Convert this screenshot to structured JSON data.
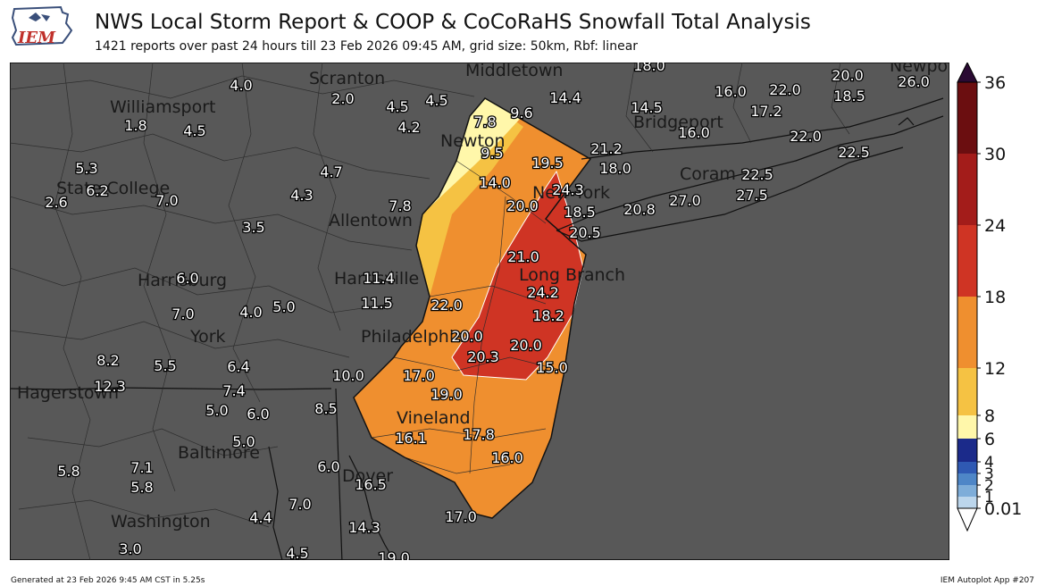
{
  "logo": {
    "text": "IEM"
  },
  "header": {
    "title": "NWS Local Storm Report & COOP & CoCoRaHS Snowfall Total Analysis",
    "subtitle": "1421 reports over past 24 hours till 23 Feb 2026 09:45 AM, grid size: 50km, Rbf: linear"
  },
  "footer": {
    "generated": "Generated at 23 Feb 2026 9:45 AM CST in 5.25s",
    "app": "IEM Autoplot App #207"
  },
  "colors": {
    "map_background": "#585858",
    "class_6_8": "#fff7aa",
    "class_8_12": "#f5c243",
    "class_12_18": "#ef8f2f",
    "class_18_24": "#cf3424",
    "class_24_30": "#a31c1a",
    "class_30_36": "#6b0e10"
  },
  "colorbar": {
    "ticks": [
      "36",
      "30",
      "24",
      "18",
      "12",
      "8",
      "6",
      "4",
      "3",
      "2",
      "1",
      "0.01"
    ]
  },
  "places": [
    "Scranton",
    "Middletown",
    "Newport",
    "Williamsport",
    "Bridgeport",
    "Newton",
    "New York",
    "State College",
    "Allentown",
    "Coram",
    "Harrisburg",
    "Harrisville",
    "Long Branch",
    "York",
    "Philadelphia",
    "Hagerstown",
    "Vineland",
    "Baltimore",
    "Dover",
    "Washington"
  ],
  "reports": [
    "18.0",
    "20.0",
    "26.0",
    "4.0",
    "2.0",
    "4.5",
    "4.5",
    "14.4",
    "16.0",
    "22.0",
    "18.5",
    "1.8",
    "7.8",
    "9.6",
    "14.5",
    "17.2",
    "4.5",
    "4.2",
    "16.0",
    "22.0",
    "21.2",
    "22.5",
    "9.5",
    "5.3",
    "19.5",
    "18.0",
    "4.7",
    "22.5",
    "6.2",
    "2.6",
    "7.0",
    "14.0",
    "24.3",
    "27.5",
    "4.3",
    "27.0",
    "20.0",
    "20.8",
    "7.8",
    "18.5",
    "3.5",
    "20.5",
    "21.0",
    "6.0",
    "11.4",
    "24.2",
    "11.5",
    "22.0",
    "7.0",
    "4.0",
    "5.0",
    "18.2",
    "20.0",
    "20.0",
    "8.2",
    "5.5",
    "6.4",
    "20.3",
    "15.0",
    "10.0",
    "17.0",
    "12.3",
    "7.4",
    "19.0",
    "5.0",
    "6.0",
    "8.5",
    "17.8",
    "16.1",
    "5.0",
    "16.0",
    "7.1",
    "5.8",
    "6.0",
    "5.8",
    "16.5",
    "7.0",
    "4.4",
    "17.0",
    "14.3",
    "3.0",
    "4.5",
    "19.0"
  ]
}
